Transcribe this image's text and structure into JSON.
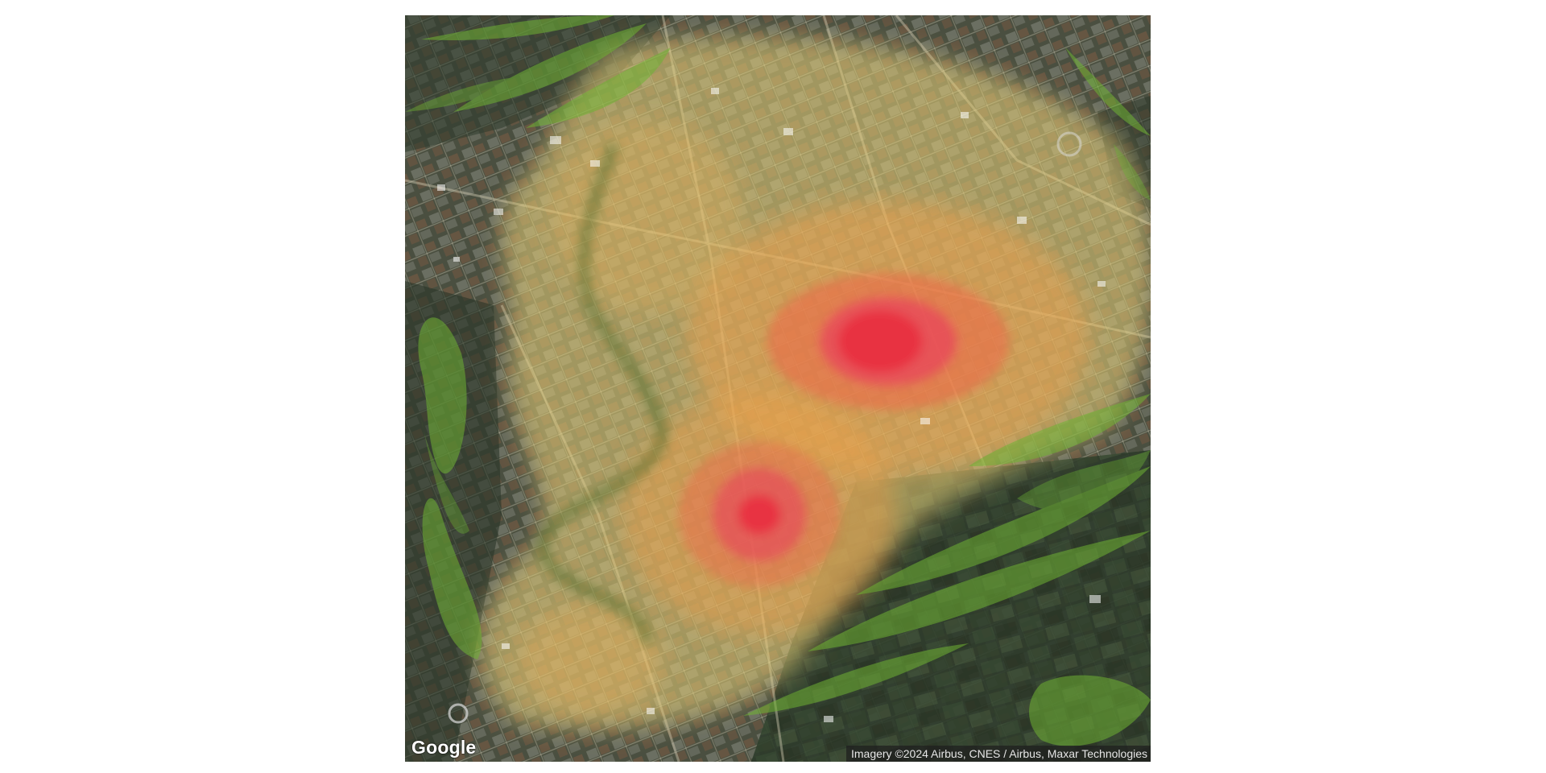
{
  "map": {
    "type": "satellite-imagery-with-heatmap",
    "logo_text": "Google",
    "attribution": "Imagery ©2024 Airbus, CNES / Airbus, Maxar Technologies",
    "colors": {
      "heat_high": "#e8283c",
      "heat_mid": "#f08a3c",
      "heat_low": "#e9d27a",
      "vegetation_overlay": "#6fb334",
      "imagery_base": "#3f4638"
    }
  }
}
